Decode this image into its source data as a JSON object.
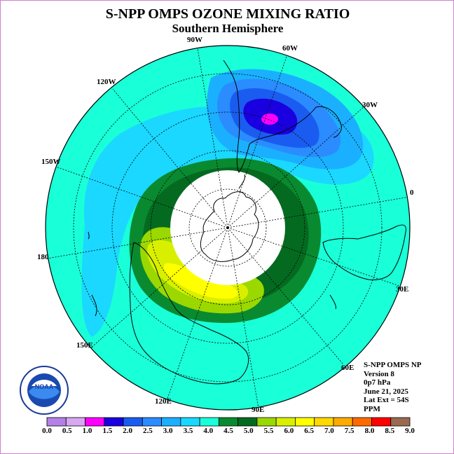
{
  "title": "S-NPP OMPS OZONE MIXING RATIO",
  "subtitle": "Southern Hemisphere",
  "longitude_labels": {
    "lon_90w": "90W",
    "lon_60w": "60W",
    "lon_30w": "30W",
    "lon_0": "0",
    "lon_30e": "30E",
    "lon_60e": "60E",
    "lon_90e": "90E",
    "lon_120e": "120E",
    "lon_150e": "150E",
    "lon_180": "180",
    "lon_150w": "150W",
    "lon_120w": "120W"
  },
  "info": {
    "instrument": "S-NPP OMPS NP",
    "version": "Version 8",
    "level": "0p7 hPa",
    "date": "June 21, 2025",
    "lat_ext": "Lat Ext = 54S",
    "units": "PPM"
  },
  "colorbar": {
    "labels": [
      "0.0",
      "0.5",
      "1.0",
      "1.5",
      "2.0",
      "2.5",
      "3.0",
      "3.5",
      "4.0",
      "4.5",
      "5.0",
      "5.5",
      "6.0",
      "6.5",
      "7.0",
      "7.5",
      "8.0",
      "8.5",
      "9.0"
    ],
    "colors": [
      "#b57fe8",
      "#d9a6f2",
      "#ff00ff",
      "#1a00e0",
      "#1a5cf0",
      "#2a8cff",
      "#1ab0ff",
      "#19d8ff",
      "#19ffd8",
      "#0a8a30",
      "#046a20",
      "#9ad800",
      "#d8f000",
      "#ffff00",
      "#ffd800",
      "#ffaa00",
      "#ff6a00",
      "#ff0000",
      "#9a6a50"
    ]
  },
  "logo": {
    "name": "NOAA"
  },
  "colors": {
    "background": "#19ffd8",
    "polar_night": "#ffffff"
  }
}
